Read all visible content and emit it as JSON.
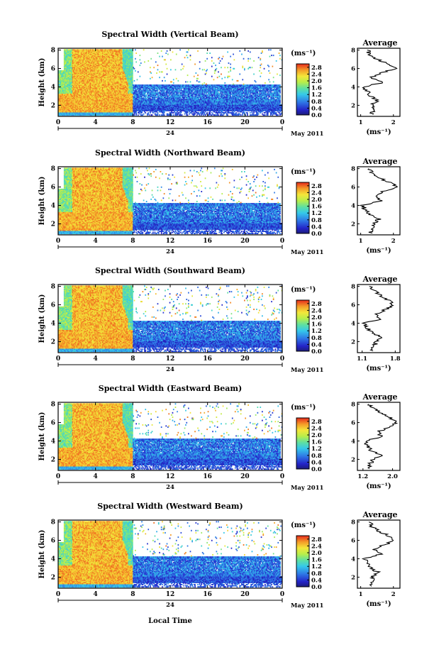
{
  "figure": {
    "x_axis_label": "Local Time",
    "date_label": "May 2011",
    "day_label": "24",
    "y_axis_label": "Height (km)",
    "avg_title": "Average",
    "colorbar_unit": "(ms⁻¹)",
    "avg_unit": "(ms⁻¹)"
  },
  "chart_data": [
    {
      "type": "heatmap",
      "title": "Spectral Width (Vertical Beam)",
      "x_ticks": [
        "0",
        "4",
        "8",
        "12",
        "16",
        "20",
        "0"
      ],
      "y_ticks": [
        "2",
        "4",
        "6",
        "8"
      ],
      "xlim": [
        0,
        24
      ],
      "ylim": [
        0.8,
        8.2
      ],
      "colorbar": {
        "ticks": [
          "0.0",
          "0.4",
          "0.8",
          "1.2",
          "1.6",
          "2.0",
          "2.4",
          "2.8"
        ],
        "range": [
          0,
          3.0
        ]
      },
      "average_profile": {
        "x_ticks": [
          "1",
          "2"
        ],
        "xlim": [
          0.9,
          2.2
        ],
        "y_ticks": [
          "2",
          "4",
          "6",
          "8"
        ],
        "height_km": [
          1.0,
          1.5,
          2.0,
          2.5,
          3.0,
          3.5,
          4.0,
          4.5,
          5.0,
          5.5,
          6.0,
          6.5,
          7.0,
          7.5,
          8.0
        ],
        "values": [
          1.3,
          1.4,
          1.35,
          1.5,
          1.3,
          1.2,
          1.1,
          1.7,
          1.3,
          1.6,
          2.1,
          1.8,
          1.5,
          1.3,
          1.2
        ]
      }
    },
    {
      "type": "heatmap",
      "title": "Spectral Width (Northward Beam)",
      "x_ticks": [
        "0",
        "4",
        "8",
        "12",
        "16",
        "20",
        "0"
      ],
      "y_ticks": [
        "2",
        "4",
        "6",
        "8"
      ],
      "xlim": [
        0,
        24
      ],
      "ylim": [
        0.8,
        8.2
      ],
      "colorbar": {
        "ticks": [
          "0.0",
          "0.4",
          "0.8",
          "1.2",
          "1.6",
          "2.0",
          "2.4",
          "2.8"
        ],
        "range": [
          0,
          3.0
        ]
      },
      "average_profile": {
        "x_ticks": [
          "1",
          "2"
        ],
        "xlim": [
          0.9,
          2.2
        ],
        "y_ticks": [
          "2",
          "4",
          "6",
          "8"
        ],
        "height_km": [
          1.0,
          1.5,
          2.0,
          2.5,
          3.0,
          3.5,
          4.0,
          4.5,
          5.0,
          5.5,
          6.0,
          6.5,
          7.0,
          7.5,
          8.0
        ],
        "values": [
          1.3,
          1.35,
          1.4,
          1.55,
          1.3,
          1.15,
          1.05,
          1.6,
          1.4,
          1.7,
          2.1,
          1.9,
          1.55,
          1.35,
          1.25
        ]
      }
    },
    {
      "type": "heatmap",
      "title": "Spectral Width (Southward Beam)",
      "x_ticks": [
        "0",
        "4",
        "8",
        "12",
        "16",
        "20",
        "0"
      ],
      "y_ticks": [
        "2",
        "4",
        "6",
        "8"
      ],
      "xlim": [
        0,
        24
      ],
      "ylim": [
        0.8,
        8.2
      ],
      "colorbar": {
        "ticks": [
          "0.0",
          "0.4",
          "0.8",
          "1.2",
          "1.6",
          "2.0",
          "2.4",
          "2.8"
        ],
        "range": [
          0,
          3.0
        ]
      },
      "average_profile": {
        "x_ticks": [
          "1.1",
          "1.8"
        ],
        "xlim": [
          1.0,
          1.9
        ],
        "y_ticks": [
          "2",
          "4",
          "6",
          "8"
        ],
        "height_km": [
          1.0,
          1.5,
          2.0,
          2.5,
          3.0,
          3.5,
          4.0,
          4.5,
          5.0,
          5.5,
          6.0,
          6.5,
          7.0,
          7.5,
          8.0
        ],
        "values": [
          1.3,
          1.35,
          1.4,
          1.5,
          1.3,
          1.2,
          1.15,
          1.5,
          1.4,
          1.6,
          1.75,
          1.65,
          1.5,
          1.35,
          1.25
        ]
      }
    },
    {
      "type": "heatmap",
      "title": "Spectral Width (Eastward Beam)",
      "x_ticks": [
        "0",
        "4",
        "8",
        "12",
        "16",
        "20",
        "0"
      ],
      "y_ticks": [
        "2",
        "4",
        "6",
        "8"
      ],
      "xlim": [
        0,
        24
      ],
      "ylim": [
        0.8,
        8.2
      ],
      "colorbar": {
        "ticks": [
          "0.0",
          "0.4",
          "0.8",
          "1.2",
          "1.6",
          "2.0",
          "2.4",
          "2.8"
        ],
        "range": [
          0,
          3.0
        ]
      },
      "average_profile": {
        "x_ticks": [
          "1.2",
          "2.0"
        ],
        "xlim": [
          1.05,
          2.2
        ],
        "y_ticks": [
          "2",
          "4",
          "6",
          "8"
        ],
        "height_km": [
          1.0,
          1.5,
          2.0,
          2.5,
          3.0,
          3.5,
          4.0,
          4.5,
          5.0,
          5.5,
          6.0,
          6.5,
          7.0,
          7.5,
          8.0
        ],
        "values": [
          1.35,
          1.4,
          1.45,
          1.7,
          1.4,
          1.3,
          1.25,
          1.7,
          1.6,
          1.9,
          2.1,
          1.95,
          1.7,
          1.5,
          1.35
        ]
      }
    },
    {
      "type": "heatmap",
      "title": "Spectral Width (Westward Beam)",
      "x_ticks": [
        "0",
        "4",
        "8",
        "12",
        "16",
        "20",
        "0"
      ],
      "y_ticks": [
        "2",
        "4",
        "6",
        "8"
      ],
      "xlim": [
        0,
        24
      ],
      "ylim": [
        0.8,
        8.2
      ],
      "colorbar": {
        "ticks": [
          "0.0",
          "0.4",
          "0.8",
          "1.2",
          "1.6",
          "2.0",
          "2.4",
          "2.8"
        ],
        "range": [
          0,
          3.0
        ]
      },
      "average_profile": {
        "x_ticks": [
          "1",
          "2"
        ],
        "xlim": [
          0.9,
          2.2
        ],
        "y_ticks": [
          "2",
          "4",
          "6",
          "8"
        ],
        "height_km": [
          1.0,
          1.5,
          2.0,
          2.5,
          3.0,
          3.5,
          4.0,
          4.5,
          5.0,
          5.5,
          6.0,
          6.5,
          7.0,
          7.5,
          8.0
        ],
        "values": [
          1.3,
          1.4,
          1.35,
          1.55,
          1.3,
          1.2,
          1.1,
          1.6,
          1.4,
          1.7,
          2.05,
          1.85,
          1.55,
          1.35,
          1.25
        ]
      }
    }
  ]
}
